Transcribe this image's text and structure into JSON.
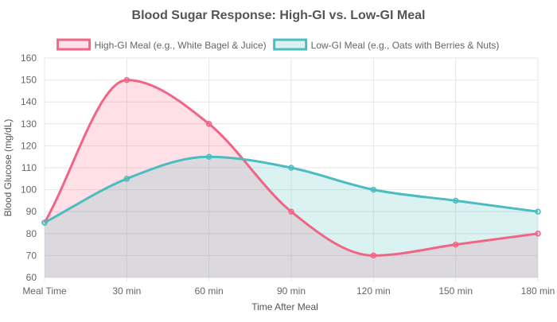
{
  "chart_data": {
    "type": "area",
    "title": "Blood Sugar Response: High-GI vs. Low-GI Meal",
    "xlabel": "Time After Meal",
    "ylabel": "Blood Glucose (mg/dL)",
    "categories": [
      "Meal Time",
      "30 min",
      "60 min",
      "90 min",
      "120 min",
      "150 min",
      "180 min"
    ],
    "ylim": [
      60,
      160
    ],
    "yticks": [
      60,
      70,
      80,
      90,
      100,
      110,
      120,
      130,
      140,
      150,
      160
    ],
    "grid": true,
    "legend_position": "top",
    "series": [
      {
        "name": "High-GI Meal (e.g., White Bagel & Juice)",
        "values": [
          85,
          150,
          130,
          90,
          70,
          75,
          80
        ],
        "color": "#f06485",
        "fill": "rgba(255, 99, 132, 0.2)"
      },
      {
        "name": "Low-GI Meal (e.g., Oats with Berries & Nuts)",
        "values": [
          85,
          105,
          115,
          110,
          100,
          95,
          90
        ],
        "color": "#4bbcbf",
        "fill": "rgba(75, 192, 192, 0.2)"
      }
    ]
  }
}
